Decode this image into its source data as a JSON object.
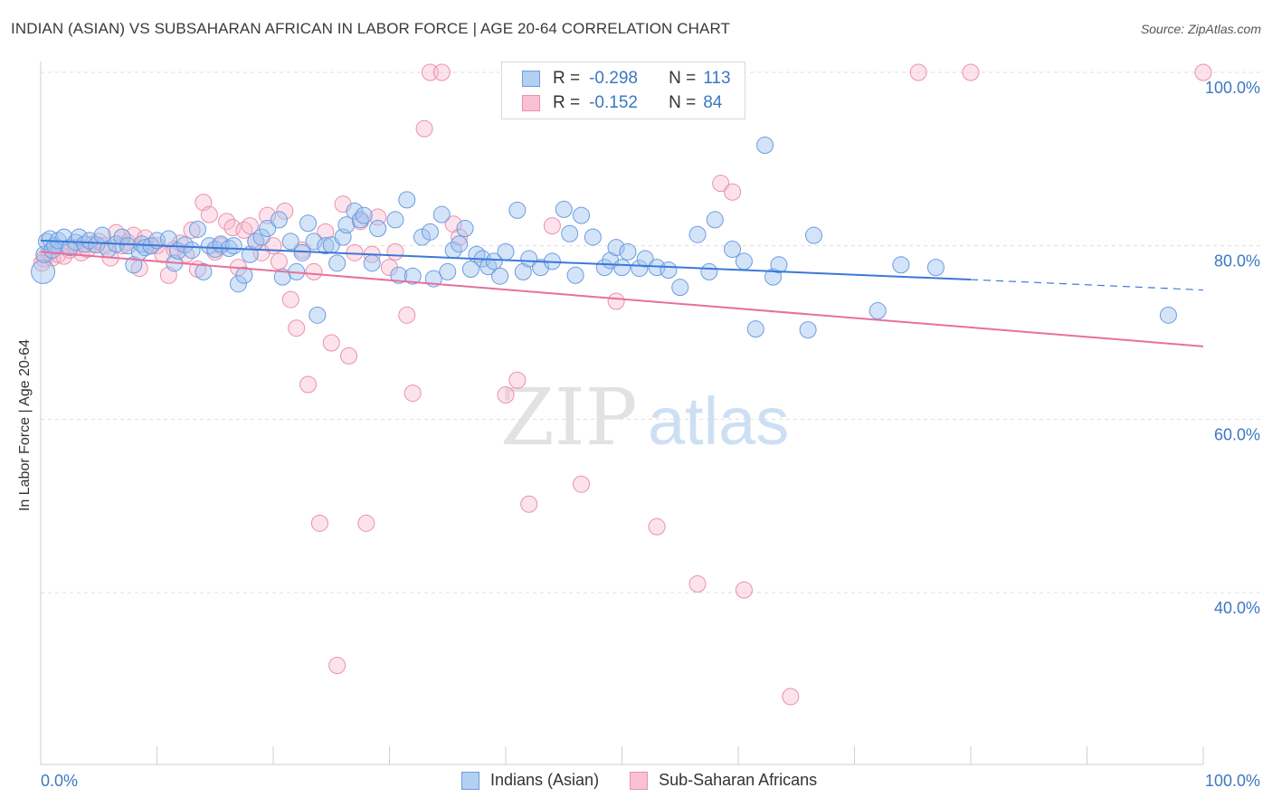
{
  "header": {
    "title": "INDIAN (ASIAN) VS SUBSAHARAN AFRICAN IN LABOR FORCE | AGE 20-64 CORRELATION CHART",
    "source": "Source: ZipAtlas.com"
  },
  "watermark": {
    "zip": "ZIP",
    "atlas": "atlas"
  },
  "legend": {
    "r_label": "R =",
    "n_label": "N =",
    "rows": [
      {
        "r": "-0.298",
        "n": "113",
        "fill": "#b3cff2",
        "stroke": "#6c9ce0"
      },
      {
        "r": "-0.152",
        "n": "84",
        "fill": "#f9c2d2",
        "stroke": "#ec8fab"
      }
    ]
  },
  "bottom_legend": [
    {
      "label": "Indians (Asian)",
      "fill": "#b3cff2",
      "stroke": "#6c9ce0"
    },
    {
      "label": "Sub-Saharan Africans",
      "fill": "#f9c2d2",
      "stroke": "#ec8fab"
    }
  ],
  "chart_data": {
    "type": "scatter",
    "ylabel": "In Labor Force | Age 20-64",
    "xlim": [
      0,
      100
    ],
    "ylim": [
      20,
      103
    ],
    "x_tick_labels": [
      "0.0%",
      "100.0%"
    ],
    "y_ticks": [
      {
        "value": 40,
        "label": "40.0%"
      },
      {
        "value": 60,
        "label": "60.0%"
      },
      {
        "value": 80,
        "label": "80.0%"
      },
      {
        "value": 100,
        "label": "100.0%"
      }
    ],
    "grid": "horizontal dashed",
    "colors": {
      "blue": "#3b78d8",
      "pink": "#e8709a",
      "tick_text": "#3b78c3"
    },
    "series": [
      {
        "name": "Indians (Asian)",
        "color": "#3b78d8",
        "trend": {
          "x0": 0,
          "y0": 80.6,
          "x1": 80,
          "y1": 76.1,
          "dash_to_x": 100,
          "dash_to_y": 74.9
        },
        "points": [
          [
            0.2,
            77.0
          ],
          [
            0.3,
            79.0
          ],
          [
            0.5,
            80.5
          ],
          [
            0.8,
            80.8
          ],
          [
            1.0,
            79.5
          ],
          [
            1.2,
            80.0
          ],
          [
            1.5,
            80.6
          ],
          [
            2.0,
            81.0
          ],
          [
            2.5,
            79.8
          ],
          [
            3.0,
            80.4
          ],
          [
            3.3,
            81.0
          ],
          [
            3.8,
            80.2
          ],
          [
            4.2,
            80.6
          ],
          [
            4.8,
            80.1
          ],
          [
            5.3,
            81.2
          ],
          [
            5.8,
            79.6
          ],
          [
            6.5,
            80.2
          ],
          [
            7.0,
            81.0
          ],
          [
            7.5,
            80.0
          ],
          [
            8.0,
            77.8
          ],
          [
            8.5,
            79.3
          ],
          [
            8.7,
            80.2
          ],
          [
            9.0,
            79.8
          ],
          [
            9.5,
            80.0
          ],
          [
            10.0,
            80.6
          ],
          [
            11.0,
            80.8
          ],
          [
            11.5,
            78.0
          ],
          [
            11.8,
            79.4
          ],
          [
            12.4,
            80.1
          ],
          [
            13.0,
            79.5
          ],
          [
            13.5,
            81.9
          ],
          [
            14.0,
            77.0
          ],
          [
            14.5,
            80.0
          ],
          [
            15.0,
            79.6
          ],
          [
            15.5,
            80.2
          ],
          [
            16.2,
            79.7
          ],
          [
            16.6,
            80.0
          ],
          [
            17.0,
            75.6
          ],
          [
            17.5,
            76.6
          ],
          [
            18.0,
            79.0
          ],
          [
            18.5,
            80.5
          ],
          [
            19.0,
            81.0
          ],
          [
            19.5,
            82.0
          ],
          [
            20.5,
            83.0
          ],
          [
            20.8,
            76.4
          ],
          [
            21.5,
            80.5
          ],
          [
            22.0,
            77.0
          ],
          [
            22.5,
            79.2
          ],
          [
            23.0,
            82.6
          ],
          [
            23.5,
            80.5
          ],
          [
            23.8,
            72.0
          ],
          [
            24.5,
            80.0
          ],
          [
            25.0,
            80.1
          ],
          [
            25.5,
            78.0
          ],
          [
            26.0,
            81.0
          ],
          [
            26.3,
            82.4
          ],
          [
            27.0,
            84.0
          ],
          [
            27.5,
            83.0
          ],
          [
            27.8,
            83.5
          ],
          [
            28.5,
            78.0
          ],
          [
            29.0,
            82.0
          ],
          [
            30.5,
            83.0
          ],
          [
            30.8,
            76.6
          ],
          [
            31.5,
            85.3
          ],
          [
            32.0,
            76.5
          ],
          [
            32.8,
            81.0
          ],
          [
            33.5,
            81.6
          ],
          [
            33.8,
            76.2
          ],
          [
            34.5,
            83.6
          ],
          [
            35.0,
            77.0
          ],
          [
            35.5,
            79.5
          ],
          [
            36.0,
            80.2
          ],
          [
            36.5,
            82.0
          ],
          [
            37.0,
            77.3
          ],
          [
            37.5,
            79.0
          ],
          [
            38.0,
            78.5
          ],
          [
            38.5,
            77.6
          ],
          [
            39.0,
            78.2
          ],
          [
            39.5,
            76.5
          ],
          [
            40.0,
            79.3
          ],
          [
            41.0,
            84.1
          ],
          [
            41.5,
            77.0
          ],
          [
            42.0,
            78.5
          ],
          [
            43.0,
            77.5
          ],
          [
            44.0,
            78.2
          ],
          [
            45.0,
            84.2
          ],
          [
            45.5,
            81.4
          ],
          [
            46.0,
            76.6
          ],
          [
            46.5,
            83.5
          ],
          [
            47.5,
            81.0
          ],
          [
            48.5,
            77.5
          ],
          [
            49.0,
            78.3
          ],
          [
            49.5,
            79.8
          ],
          [
            50.0,
            77.5
          ],
          [
            50.5,
            79.3
          ],
          [
            51.5,
            77.4
          ],
          [
            52.0,
            78.5
          ],
          [
            53.0,
            77.5
          ],
          [
            54.0,
            77.2
          ],
          [
            55.0,
            75.2
          ],
          [
            56.5,
            81.3
          ],
          [
            57.5,
            77.0
          ],
          [
            58.0,
            83.0
          ],
          [
            59.5,
            79.6
          ],
          [
            60.5,
            78.2
          ],
          [
            61.5,
            70.4
          ],
          [
            62.3,
            91.6
          ],
          [
            63.0,
            76.4
          ],
          [
            63.5,
            77.8
          ],
          [
            66.0,
            70.3
          ],
          [
            66.5,
            81.2
          ],
          [
            72.0,
            72.5
          ],
          [
            74.0,
            77.8
          ],
          [
            77.0,
            77.5
          ],
          [
            97.0,
            72.0
          ]
        ]
      },
      {
        "name": "Sub-Saharan Africans",
        "color": "#e8709a",
        "trend": {
          "x0": 0,
          "y0": 79.3,
          "x1": 100,
          "y1": 68.4
        },
        "points": [
          [
            0.3,
            78.5
          ],
          [
            0.7,
            79.2
          ],
          [
            1.0,
            78.6
          ],
          [
            1.5,
            79.0
          ],
          [
            2.0,
            78.8
          ],
          [
            2.5,
            79.5
          ],
          [
            3.0,
            79.8
          ],
          [
            3.5,
            79.2
          ],
          [
            4.0,
            79.6
          ],
          [
            4.5,
            80.2
          ],
          [
            5.0,
            80.5
          ],
          [
            5.5,
            80.0
          ],
          [
            6.0,
            78.6
          ],
          [
            6.5,
            81.5
          ],
          [
            7.0,
            80.0
          ],
          [
            7.5,
            80.4
          ],
          [
            8.0,
            81.2
          ],
          [
            8.5,
            77.4
          ],
          [
            9.0,
            80.9
          ],
          [
            9.5,
            80.0
          ],
          [
            10.0,
            80.0
          ],
          [
            10.5,
            79.0
          ],
          [
            11.0,
            76.6
          ],
          [
            11.5,
            79.6
          ],
          [
            12.0,
            80.3
          ],
          [
            12.5,
            79.0
          ],
          [
            13.0,
            81.8
          ],
          [
            13.5,
            77.3
          ],
          [
            14.0,
            85.0
          ],
          [
            14.5,
            83.6
          ],
          [
            15.0,
            79.3
          ],
          [
            15.5,
            80.0
          ],
          [
            16.0,
            82.8
          ],
          [
            16.5,
            82.1
          ],
          [
            17.0,
            77.5
          ],
          [
            17.5,
            81.8
          ],
          [
            18.0,
            82.3
          ],
          [
            18.5,
            80.5
          ],
          [
            19.0,
            79.2
          ],
          [
            19.5,
            83.5
          ],
          [
            20.0,
            80.0
          ],
          [
            20.5,
            78.2
          ],
          [
            21.0,
            84.0
          ],
          [
            21.5,
            73.8
          ],
          [
            22.0,
            70.5
          ],
          [
            22.5,
            79.5
          ],
          [
            23.0,
            64.0
          ],
          [
            23.5,
            77.0
          ],
          [
            24.0,
            48.0
          ],
          [
            24.5,
            81.6
          ],
          [
            25.0,
            68.8
          ],
          [
            25.5,
            31.6
          ],
          [
            26.0,
            84.8
          ],
          [
            26.5,
            67.3
          ],
          [
            27.0,
            79.2
          ],
          [
            27.5,
            82.8
          ],
          [
            28.0,
            48.0
          ],
          [
            28.5,
            79.0
          ],
          [
            29.0,
            83.3
          ],
          [
            30.0,
            77.5
          ],
          [
            30.5,
            79.3
          ],
          [
            31.5,
            72.0
          ],
          [
            32.0,
            63.0
          ],
          [
            33.0,
            93.5
          ],
          [
            33.5,
            100.0
          ],
          [
            34.5,
            100.0
          ],
          [
            35.5,
            82.5
          ],
          [
            36.0,
            81.0
          ],
          [
            40.0,
            62.8
          ],
          [
            41.0,
            64.5
          ],
          [
            42.0,
            50.2
          ],
          [
            44.0,
            82.3
          ],
          [
            46.5,
            52.5
          ],
          [
            49.5,
            73.6
          ],
          [
            53.0,
            47.6
          ],
          [
            56.5,
            41.0
          ],
          [
            58.5,
            87.2
          ],
          [
            59.5,
            86.2
          ],
          [
            60.5,
            40.3
          ],
          [
            64.5,
            28.0
          ],
          [
            75.5,
            100.0
          ],
          [
            80.0,
            100.0
          ],
          [
            100.0,
            100.0
          ],
          [
            0.1,
            78.0
          ]
        ]
      }
    ]
  }
}
